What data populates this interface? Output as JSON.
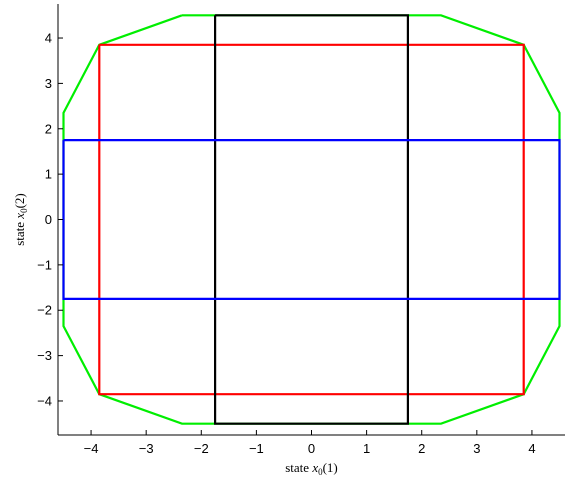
{
  "chart_data": {
    "type": "line",
    "xlabel": "state x0(1)",
    "ylabel": "state x0(2)",
    "xlim": [
      -4.6,
      4.6
    ],
    "ylim": [
      -4.75,
      4.75
    ],
    "x_ticks": [
      -4,
      -3,
      -2,
      -1,
      0,
      1,
      2,
      3,
      4
    ],
    "y_ticks": [
      -4,
      -3,
      -2,
      -1,
      0,
      1,
      2,
      3,
      4
    ],
    "grid": false,
    "legend": "none",
    "series": [
      {
        "color": "#00ee00",
        "points": [
          [
            -2.35,
            4.5
          ],
          [
            2.35,
            4.5
          ],
          [
            3.85,
            3.85
          ],
          [
            4.5,
            2.35
          ],
          [
            4.5,
            -2.35
          ],
          [
            3.85,
            -3.85
          ],
          [
            2.35,
            -4.5
          ],
          [
            -2.35,
            -4.5
          ],
          [
            -3.85,
            -3.85
          ],
          [
            -4.5,
            -2.35
          ],
          [
            -4.5,
            2.35
          ],
          [
            -3.85,
            3.85
          ],
          [
            -2.35,
            4.5
          ]
        ]
      },
      {
        "color": "#ff0000",
        "points": [
          [
            -3.85,
            3.85
          ],
          [
            3.85,
            3.85
          ],
          [
            3.85,
            -3.85
          ],
          [
            -3.85,
            -3.85
          ],
          [
            -3.85,
            3.85
          ]
        ]
      },
      {
        "color": "#000000",
        "points": [
          [
            -1.75,
            4.5
          ],
          [
            1.75,
            4.5
          ],
          [
            1.75,
            -4.5
          ],
          [
            -1.75,
            -4.5
          ],
          [
            -1.75,
            4.5
          ]
        ]
      },
      {
        "color": "#0000ff",
        "points": [
          [
            -4.5,
            1.75
          ],
          [
            4.5,
            1.75
          ],
          [
            4.5,
            -1.75
          ],
          [
            -4.5,
            -1.75
          ],
          [
            -4.5,
            1.75
          ]
        ]
      }
    ]
  }
}
